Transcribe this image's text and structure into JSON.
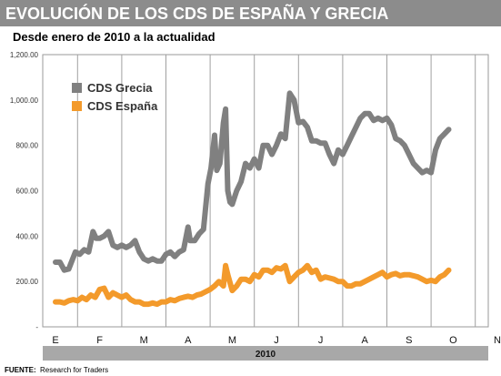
{
  "title": "EVOLUCIÓN DE LOS CDS DE ESPAÑA Y GRECIA",
  "subtitle": "Desde enero de 2010 a la actualidad",
  "source_label": "FUENTE:",
  "source_text": "Research for Traders",
  "year_label": "2010",
  "colors": {
    "title_bar": "#8c8c8c",
    "grecia": "#808080",
    "espana": "#f39a2b",
    "year_band": "#a8a8a8",
    "frame": "#9a9a9a"
  },
  "chart_data": {
    "type": "line",
    "title": "EVOLUCIÓN DE LOS CDS DE ESPAÑA Y GRECIA",
    "subtitle": "Desde enero de 2010 a la actualidad",
    "xlabel": "",
    "ylabel": "",
    "x_ticks": [
      "E",
      "F",
      "M",
      "A",
      "M",
      "J",
      "J",
      "A",
      "S",
      "O",
      "N"
    ],
    "y_ticks": [
      "-",
      "200.00",
      "400.00",
      "600.00",
      "800.00",
      "1,000.00",
      "1,200.00"
    ],
    "ylim": [
      0,
      1200
    ],
    "xlim": [
      0,
      10.5
    ],
    "grid": "vertical",
    "legend": "top-left",
    "series": [
      {
        "name": "CDS Grecia",
        "points": [
          [
            0.0,
            285
          ],
          [
            0.1,
            285
          ],
          [
            0.2,
            250
          ],
          [
            0.3,
            255
          ],
          [
            0.45,
            330
          ],
          [
            0.55,
            320
          ],
          [
            0.65,
            340
          ],
          [
            0.75,
            330
          ],
          [
            0.85,
            420
          ],
          [
            0.92,
            390
          ],
          [
            1.0,
            390
          ],
          [
            1.1,
            400
          ],
          [
            1.2,
            420
          ],
          [
            1.3,
            360
          ],
          [
            1.4,
            350
          ],
          [
            1.5,
            360
          ],
          [
            1.6,
            350
          ],
          [
            1.7,
            360
          ],
          [
            1.8,
            380
          ],
          [
            1.9,
            330
          ],
          [
            2.0,
            300
          ],
          [
            2.1,
            290
          ],
          [
            2.2,
            300
          ],
          [
            2.3,
            290
          ],
          [
            2.4,
            290
          ],
          [
            2.5,
            320
          ],
          [
            2.6,
            330
          ],
          [
            2.7,
            310
          ],
          [
            2.8,
            330
          ],
          [
            2.9,
            340
          ],
          [
            3.0,
            440
          ],
          [
            3.05,
            380
          ],
          [
            3.15,
            380
          ],
          [
            3.25,
            410
          ],
          [
            3.35,
            430
          ],
          [
            3.45,
            630
          ],
          [
            3.52,
            700
          ],
          [
            3.6,
            845
          ],
          [
            3.65,
            690
          ],
          [
            3.72,
            720
          ],
          [
            3.8,
            900
          ],
          [
            3.85,
            960
          ],
          [
            3.9,
            600
          ],
          [
            3.95,
            550
          ],
          [
            4.0,
            540
          ],
          [
            4.1,
            600
          ],
          [
            4.2,
            640
          ],
          [
            4.3,
            720
          ],
          [
            4.4,
            700
          ],
          [
            4.5,
            740
          ],
          [
            4.6,
            700
          ],
          [
            4.7,
            800
          ],
          [
            4.8,
            800
          ],
          [
            4.9,
            760
          ],
          [
            5.0,
            800
          ],
          [
            5.1,
            850
          ],
          [
            5.2,
            830
          ],
          [
            5.3,
            1030
          ],
          [
            5.35,
            1015
          ],
          [
            5.4,
            1000
          ],
          [
            5.5,
            900
          ],
          [
            5.6,
            905
          ],
          [
            5.7,
            880
          ],
          [
            5.8,
            820
          ],
          [
            5.9,
            820
          ],
          [
            6.0,
            810
          ],
          [
            6.1,
            810
          ],
          [
            6.2,
            760
          ],
          [
            6.3,
            720
          ],
          [
            6.4,
            780
          ],
          [
            6.5,
            760
          ],
          [
            6.6,
            800
          ],
          [
            6.7,
            840
          ],
          [
            6.8,
            880
          ],
          [
            6.9,
            920
          ],
          [
            7.0,
            940
          ],
          [
            7.1,
            940
          ],
          [
            7.2,
            910
          ],
          [
            7.3,
            920
          ],
          [
            7.4,
            910
          ],
          [
            7.5,
            920
          ],
          [
            7.6,
            890
          ],
          [
            7.7,
            830
          ],
          [
            7.8,
            820
          ],
          [
            7.9,
            800
          ],
          [
            8.0,
            760
          ],
          [
            8.1,
            720
          ],
          [
            8.2,
            700
          ],
          [
            8.3,
            680
          ],
          [
            8.4,
            690
          ],
          [
            8.5,
            680
          ],
          [
            8.6,
            780
          ],
          [
            8.7,
            830
          ],
          [
            8.8,
            850
          ],
          [
            8.9,
            870
          ]
        ]
      },
      {
        "name": "CDS España",
        "points": [
          [
            0.0,
            110
          ],
          [
            0.1,
            110
          ],
          [
            0.2,
            105
          ],
          [
            0.3,
            115
          ],
          [
            0.4,
            120
          ],
          [
            0.5,
            115
          ],
          [
            0.6,
            130
          ],
          [
            0.7,
            120
          ],
          [
            0.8,
            140
          ],
          [
            0.9,
            130
          ],
          [
            1.0,
            165
          ],
          [
            1.1,
            170
          ],
          [
            1.2,
            130
          ],
          [
            1.3,
            150
          ],
          [
            1.4,
            140
          ],
          [
            1.5,
            130
          ],
          [
            1.6,
            140
          ],
          [
            1.7,
            120
          ],
          [
            1.8,
            110
          ],
          [
            1.9,
            110
          ],
          [
            2.0,
            100
          ],
          [
            2.1,
            100
          ],
          [
            2.2,
            105
          ],
          [
            2.3,
            100
          ],
          [
            2.4,
            110
          ],
          [
            2.5,
            110
          ],
          [
            2.6,
            120
          ],
          [
            2.7,
            115
          ],
          [
            2.8,
            125
          ],
          [
            2.9,
            130
          ],
          [
            3.0,
            135
          ],
          [
            3.1,
            130
          ],
          [
            3.2,
            140
          ],
          [
            3.3,
            145
          ],
          [
            3.4,
            155
          ],
          [
            3.5,
            165
          ],
          [
            3.6,
            180
          ],
          [
            3.7,
            200
          ],
          [
            3.8,
            180
          ],
          [
            3.85,
            270
          ],
          [
            3.9,
            230
          ],
          [
            4.0,
            160
          ],
          [
            4.1,
            180
          ],
          [
            4.2,
            210
          ],
          [
            4.3,
            210
          ],
          [
            4.4,
            200
          ],
          [
            4.5,
            230
          ],
          [
            4.6,
            220
          ],
          [
            4.7,
            250
          ],
          [
            4.8,
            250
          ],
          [
            4.9,
            240
          ],
          [
            5.0,
            260
          ],
          [
            5.1,
            255
          ],
          [
            5.2,
            270
          ],
          [
            5.3,
            200
          ],
          [
            5.4,
            220
          ],
          [
            5.5,
            240
          ],
          [
            5.6,
            250
          ],
          [
            5.7,
            270
          ],
          [
            5.8,
            240
          ],
          [
            5.9,
            250
          ],
          [
            6.0,
            210
          ],
          [
            6.1,
            220
          ],
          [
            6.2,
            215
          ],
          [
            6.3,
            210
          ],
          [
            6.4,
            200
          ],
          [
            6.5,
            200
          ],
          [
            6.6,
            180
          ],
          [
            6.7,
            180
          ],
          [
            6.8,
            190
          ],
          [
            6.9,
            190
          ],
          [
            7.0,
            200
          ],
          [
            7.1,
            210
          ],
          [
            7.2,
            220
          ],
          [
            7.3,
            230
          ],
          [
            7.4,
            240
          ],
          [
            7.5,
            220
          ],
          [
            7.6,
            230
          ],
          [
            7.7,
            235
          ],
          [
            7.8,
            225
          ],
          [
            7.9,
            230
          ],
          [
            8.0,
            230
          ],
          [
            8.1,
            225
          ],
          [
            8.2,
            220
          ],
          [
            8.3,
            210
          ],
          [
            8.4,
            200
          ],
          [
            8.5,
            205
          ],
          [
            8.6,
            200
          ],
          [
            8.7,
            220
          ],
          [
            8.8,
            230
          ],
          [
            8.9,
            250
          ]
        ]
      }
    ]
  }
}
